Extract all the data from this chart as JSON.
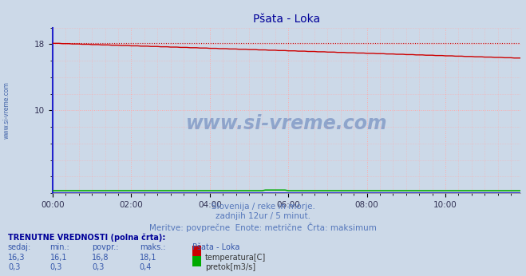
{
  "title": "Pšata - Loka",
  "bg_color": "#ccd9e8",
  "plot_bg_color": "#ccd9e8",
  "grid_color": "#ffaaaa",
  "x_ticks_labels": [
    "00:00",
    "02:00",
    "04:00",
    "06:00",
    "08:00",
    "10:00"
  ],
  "x_ticks_positions": [
    0,
    24,
    48,
    72,
    96,
    120
  ],
  "ylim": [
    0,
    20
  ],
  "ytick_positions": [
    10,
    18
  ],
  "ytick_labels": [
    "10",
    "18"
  ],
  "total_points": 144,
  "temp_start": 18.1,
  "temp_end": 16.3,
  "temp_max": 18.1,
  "temp_color": "#cc0000",
  "temp_max_color": "#cc0000",
  "flow_value": 0.3,
  "flow_max": 0.4,
  "flow_color": "#00aa00",
  "blue_line_color": "#2222cc",
  "spine_color": "#2222cc",
  "title_color": "#000099",
  "subtitle1": "Slovenija / reke in morje.",
  "subtitle2": "zadnjih 12ur / 5 minut.",
  "subtitle3": "Meritve: povprečne  Enote: metrične  Črta: maksimum",
  "subtitle_color": "#5577bb",
  "watermark_text": "www.si-vreme.com",
  "watermark_color": "#4466aa",
  "table_header": "TRENUTNE VREDNOSTI (polna črta):",
  "col_headers": [
    "sedaj:",
    "min.:",
    "povpr.:",
    "maks.:",
    "Pšata - Loka"
  ],
  "row1_vals": [
    "16,3",
    "16,1",
    "16,8",
    "18,1"
  ],
  "row1_label": "temperatura[C]",
  "row1_color": "#cc0000",
  "row2_vals": [
    "0,3",
    "0,3",
    "0,3",
    "0,4"
  ],
  "row2_label": "pretok[m3/s]",
  "row2_color": "#00aa00",
  "sidebar_text": "www.si-vreme.com",
  "sidebar_color": "#4466aa"
}
